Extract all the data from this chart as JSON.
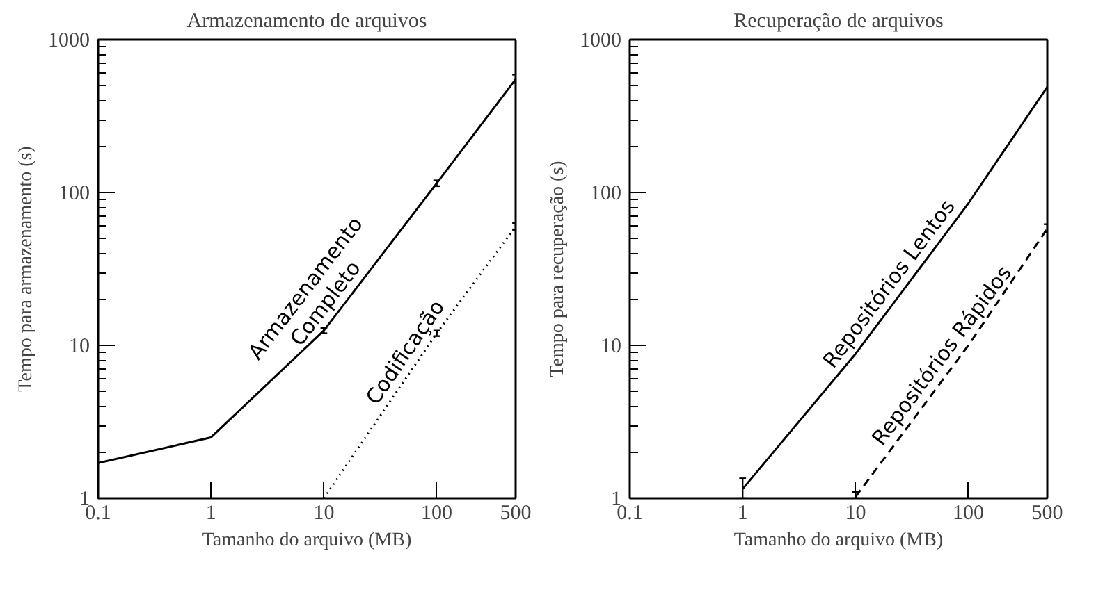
{
  "chart_data": [
    {
      "type": "line",
      "title": "Armazenamento de arquivos",
      "xlabel": "Tamanho do arquivo (MB)",
      "ylabel": "Tempo para armazenamento (s)",
      "log": "xy",
      "xlim": [
        0.1,
        500
      ],
      "ylim": [
        1,
        1000
      ],
      "xticks": [
        0.1,
        1,
        10,
        100,
        500
      ],
      "yticks": [
        1,
        10,
        100,
        1000
      ],
      "grid": false,
      "marker": "none",
      "series": [
        {
          "name": "Armazenamento\nCompleto",
          "color": "#000000",
          "line_style": "solid",
          "x": [
            0.1,
            1,
            10,
            100,
            500
          ],
          "values": [
            1.7,
            2.5,
            12.5,
            115,
            550
          ],
          "errors": [
            null,
            null,
            [
              12,
              13
            ],
            [
              110,
              120
            ],
            [
              520,
              590
            ]
          ]
        },
        {
          "name": "Codificação",
          "color": "#000000",
          "line_style": "dotted",
          "x": [
            10,
            100,
            500
          ],
          "values": [
            1,
            12,
            60
          ],
          "errors": [
            null,
            [
              11.5,
              12.5
            ],
            [
              57,
              63
            ]
          ]
        }
      ]
    },
    {
      "type": "line",
      "title": "Recuperação de arquivos",
      "xlabel": "Tamanho do arquivo (MB)",
      "ylabel": "Tempo para recuperação (s)",
      "log": "xy",
      "xlim": [
        0.1,
        500
      ],
      "ylim": [
        1,
        1000
      ],
      "xticks": [
        0.1,
        1,
        10,
        100,
        500
      ],
      "yticks": [
        1,
        10,
        100,
        1000
      ],
      "grid": false,
      "marker": "none",
      "series": [
        {
          "name": "Repositórios Lentos",
          "color": "#000000",
          "line_style": "solid",
          "x": [
            1,
            10,
            100,
            500
          ],
          "values": [
            1.15,
            8.8,
            85,
            490
          ],
          "errors": [
            [
              1.0,
              1.35
            ],
            null,
            null,
            null
          ]
        },
        {
          "name": "Repositórios Rápidos",
          "color": "#000000",
          "line_style": "dashed",
          "x": [
            10,
            100,
            500
          ],
          "values": [
            1.02,
            10,
            58
          ],
          "errors": [
            [
              1.0,
              1.1
            ],
            null,
            [
              55,
              62
            ]
          ]
        }
      ]
    }
  ]
}
